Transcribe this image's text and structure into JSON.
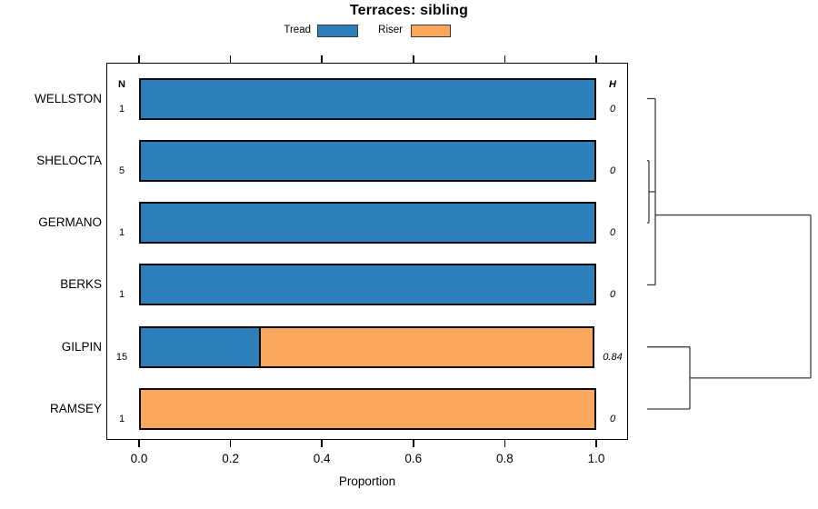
{
  "chart_data": {
    "type": "bar",
    "variant": "horizontal_stacked_proportions_with_dendrogram",
    "title": "Terraces: sibling",
    "xlabel": "Proportion",
    "xlim": [
      0,
      1
    ],
    "xtick_labels": [
      "0.0",
      "0.2",
      "0.4",
      "0.6",
      "0.8",
      "1.0"
    ],
    "xtick_values": [
      0,
      0.2,
      0.4,
      0.6,
      0.8,
      1.0
    ],
    "columns": {
      "n_header": "N",
      "h_header": "H"
    },
    "legend": {
      "position": "top",
      "items": [
        {
          "label": "Tread",
          "color": "#2E7EBB"
        },
        {
          "label": "Riser",
          "color": "#FBA75E"
        }
      ]
    },
    "rows": [
      {
        "label": "WELLSTON",
        "n": "1",
        "h": "0",
        "tread": 1.0,
        "riser": 0.0
      },
      {
        "label": "SHELOCTA",
        "n": "5",
        "h": "0",
        "tread": 1.0,
        "riser": 0.0
      },
      {
        "label": "GERMANO",
        "n": "1",
        "h": "0",
        "tread": 1.0,
        "riser": 0.0
      },
      {
        "label": "BERKS",
        "n": "1",
        "h": "0",
        "tread": 1.0,
        "riser": 0.0
      },
      {
        "label": "GILPIN",
        "n": "15",
        "h": "0.84",
        "tread": 0.267,
        "riser": 0.733
      },
      {
        "label": "RAMSEY",
        "n": "1",
        "h": "0",
        "tread": 0.0,
        "riser": 1.0
      }
    ],
    "dendrogram": {
      "topology": "((WELLSTON,(SHELOCTA,GERMANO),BERKS),(GILPIN,RAMSEY))",
      "note": "segments as [depth1,row1,depth2,row2]; depth 0 = leaf side, 1 = root; row in bar-row units",
      "segments": [
        [
          0,
          0,
          0.05,
          0
        ],
        [
          0,
          1,
          0.011,
          1
        ],
        [
          0.011,
          1,
          0.011,
          2
        ],
        [
          0,
          2,
          0.011,
          2
        ],
        [
          0.011,
          1.5,
          0.05,
          1.5
        ],
        [
          0.05,
          0,
          0.05,
          3
        ],
        [
          0,
          3,
          0.05,
          3
        ],
        [
          0.05,
          1.875,
          1,
          1.875
        ],
        [
          1,
          1.875,
          1,
          4.5
        ],
        [
          0,
          4,
          0.261,
          4
        ],
        [
          0.261,
          4,
          0.261,
          5
        ],
        [
          0,
          5,
          0.261,
          5
        ],
        [
          0.261,
          4.5,
          1,
          4.5
        ]
      ]
    }
  },
  "colors": {
    "tread": "#2E7EBB",
    "riser": "#FBA75E",
    "bar_border": "#0a0a0a",
    "dendrogram_line": "#3f3f3f",
    "axis": "#000000"
  }
}
